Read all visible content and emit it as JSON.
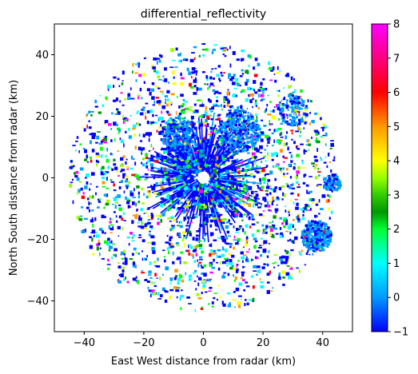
{
  "chart_data": {
    "type": "heatmap",
    "title": "differential_reflectivity",
    "xlabel": "East West distance from radar (km)",
    "ylabel": "North South distance from radar (km)",
    "xlim": [
      -50,
      50
    ],
    "ylim": [
      -50,
      50
    ],
    "xticks": [
      -40,
      -20,
      0,
      20,
      40
    ],
    "yticks": [
      -40,
      -20,
      0,
      20,
      40
    ],
    "colorbar": {
      "range": [
        -1,
        8
      ],
      "ticks": [
        -1,
        0,
        1,
        2,
        3,
        4,
        5,
        6,
        7,
        8
      ],
      "colormap": [
        "#0000ff",
        "#00a0ff",
        "#00ffff",
        "#00ff00",
        "#009900",
        "#99ff00",
        "#ffff00",
        "#ff9900",
        "#ff0000",
        "#ff00ff"
      ]
    },
    "radar_center": [
      0,
      0
    ],
    "max_range_km": 45,
    "grid": false
  }
}
